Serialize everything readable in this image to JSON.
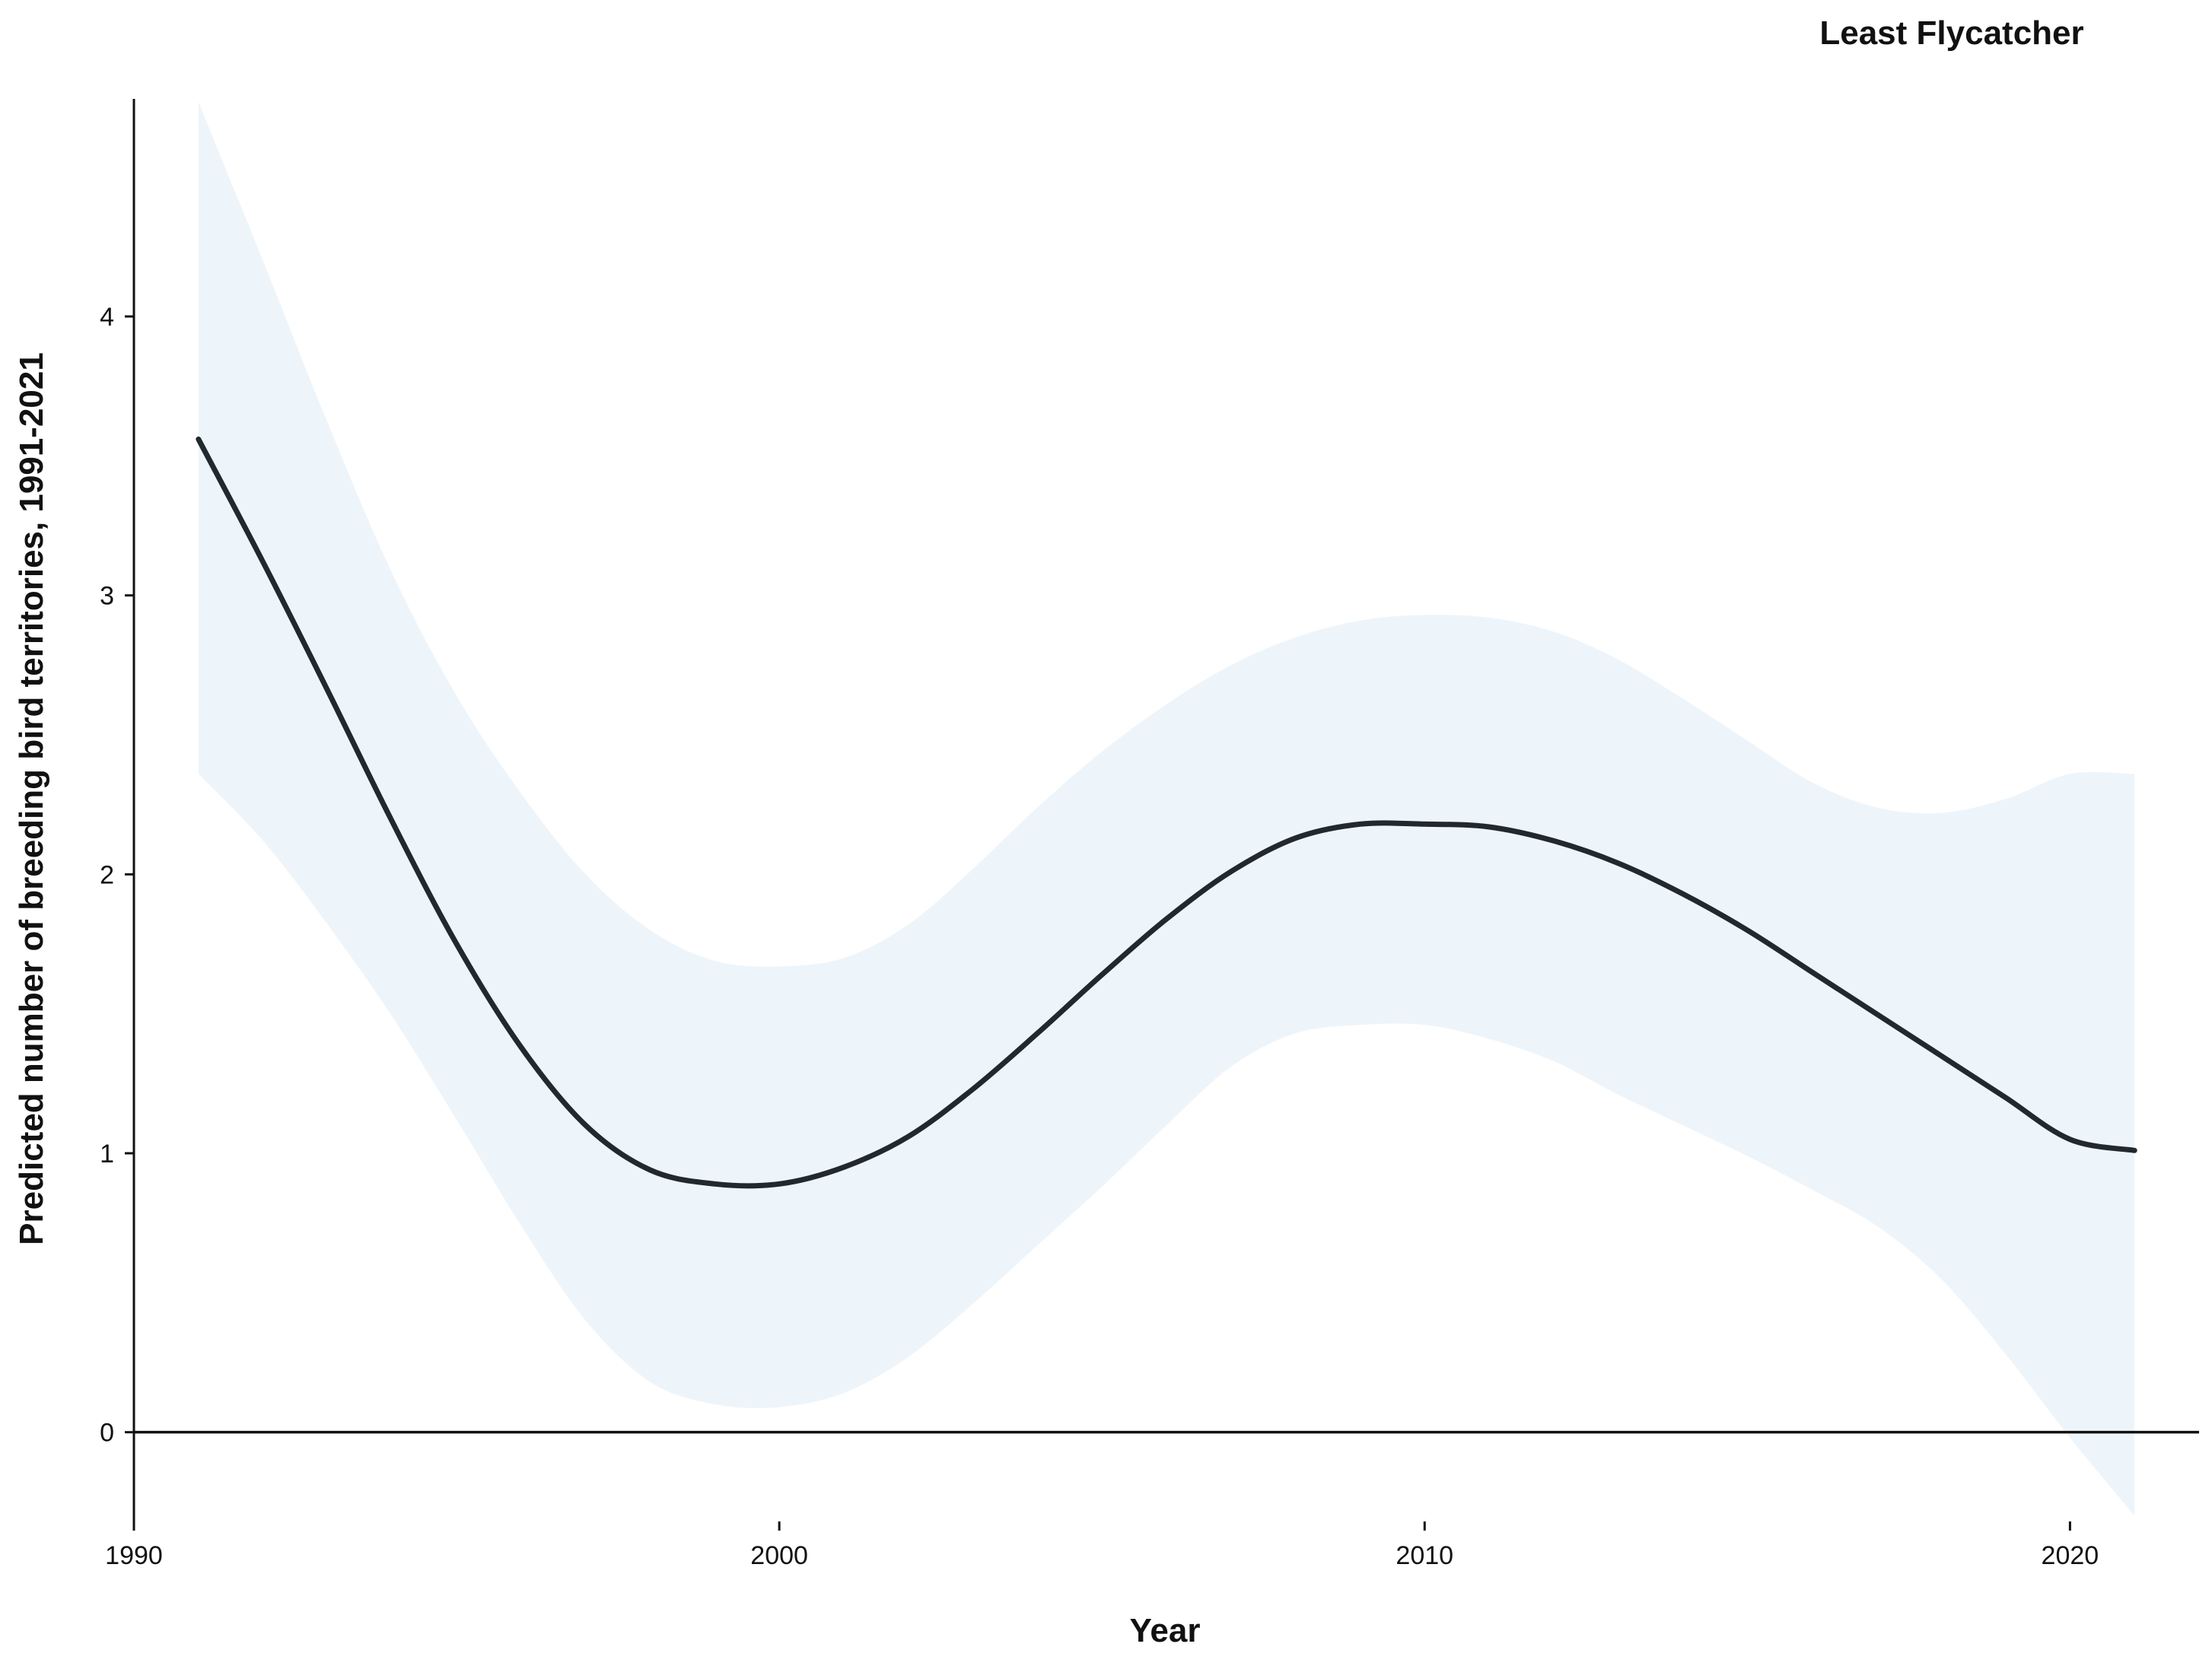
{
  "chart_data": {
    "type": "line",
    "title": "Least Flycatcher",
    "xlabel": "Year",
    "ylabel": "Predicted number of breeding bird territories, 1991-2021",
    "xlim": [
      1990,
      2022
    ],
    "ylim": [
      -0.32,
      4.78
    ],
    "x_ticks": [
      1990,
      2000,
      2010,
      2020
    ],
    "y_ticks": [
      0,
      1,
      2,
      3,
      4
    ],
    "reference_line_y": 0,
    "grid": false,
    "legend": "none",
    "colors": {
      "line": "#22292e",
      "band": "#eef5fa",
      "axis": "#111111"
    },
    "series": [
      {
        "x": [
          1991,
          1992,
          1993,
          1994,
          1995,
          1996,
          1997,
          1998,
          1999,
          2000,
          2001,
          2002,
          2003,
          2004,
          2005,
          2006,
          2007,
          2008,
          2009,
          2010,
          2011,
          2012,
          2013,
          2014,
          2015,
          2016,
          2017,
          2018,
          2019,
          2020,
          2021
        ],
        "y": [
          3.56,
          3.12,
          2.66,
          2.19,
          1.75,
          1.38,
          1.1,
          0.94,
          0.89,
          0.89,
          0.95,
          1.06,
          1.23,
          1.43,
          1.64,
          1.84,
          2.01,
          2.13,
          2.18,
          2.18,
          2.17,
          2.12,
          2.04,
          1.93,
          1.8,
          1.65,
          1.5,
          1.35,
          1.2,
          1.05,
          1.01
        ],
        "lower": [
          2.36,
          2.12,
          1.82,
          1.49,
          1.12,
          0.74,
          0.4,
          0.18,
          0.1,
          0.09,
          0.14,
          0.27,
          0.46,
          0.67,
          0.88,
          1.1,
          1.31,
          1.43,
          1.46,
          1.46,
          1.41,
          1.33,
          1.21,
          1.1,
          0.99,
          0.87,
          0.74,
          0.55,
          0.28,
          -0.02,
          -0.3
        ],
        "upper": [
          4.77,
          4.2,
          3.62,
          3.08,
          2.64,
          2.29,
          2.0,
          1.8,
          1.69,
          1.67,
          1.7,
          1.82,
          2.02,
          2.24,
          2.44,
          2.61,
          2.75,
          2.85,
          2.91,
          2.93,
          2.92,
          2.87,
          2.77,
          2.63,
          2.48,
          2.33,
          2.24,
          2.22,
          2.27,
          2.36,
          2.36
        ]
      }
    ]
  }
}
